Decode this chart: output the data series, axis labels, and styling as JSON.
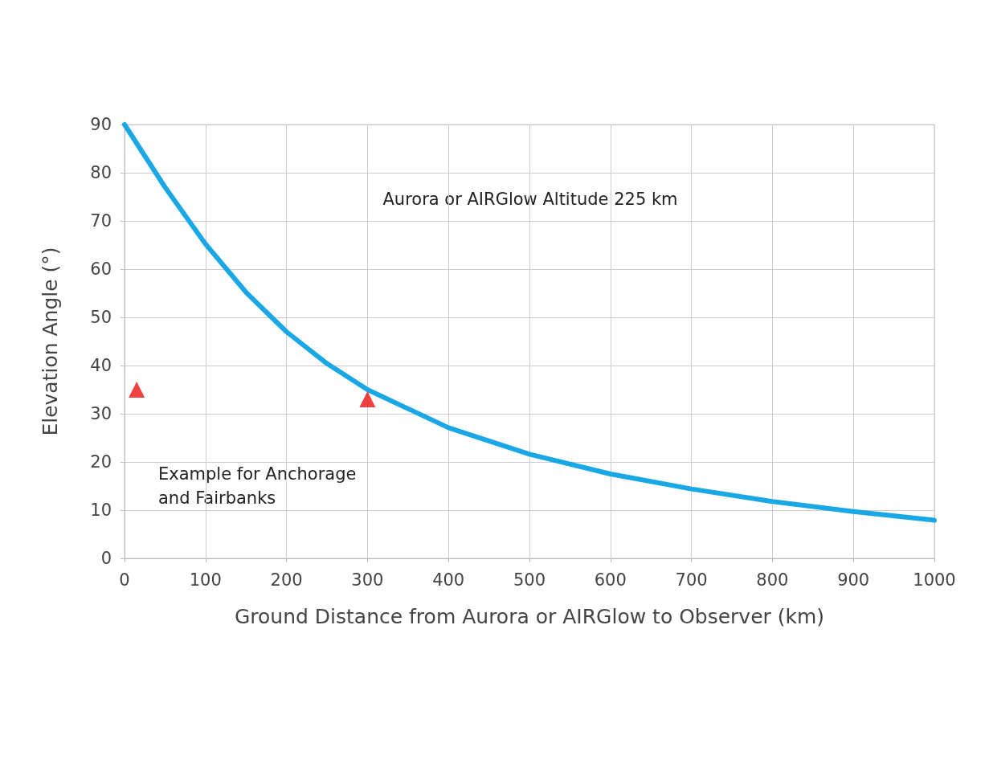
{
  "chart_data": {
    "type": "line",
    "xlabel": "Ground Distance from Aurora or AIRGlow to Observer (km)",
    "ylabel": "Elevation Angle (°)",
    "annotations": [
      "Aurora or AIRGlow Altitude 225 km",
      "Example for Anchorage and Fairbanks"
    ],
    "xlim": [
      0,
      1000
    ],
    "ylim": [
      0,
      90
    ],
    "xticks": [
      0,
      100,
      200,
      300,
      400,
      500,
      600,
      700,
      800,
      900,
      1000
    ],
    "yticks": [
      0,
      10,
      20,
      30,
      40,
      50,
      60,
      70,
      80,
      90
    ],
    "grid": true,
    "series": [
      {
        "color": "#1aa7e6",
        "marker": "none",
        "line_style": "solid",
        "x": [
          0,
          50,
          100,
          150,
          200,
          250,
          300,
          400,
          500,
          600,
          700,
          800,
          900,
          1000
        ],
        "values": [
          90,
          77,
          65.2,
          55.2,
          47,
          40.4,
          35,
          27.1,
          21.6,
          17.5,
          14.4,
          11.8,
          9.7,
          7.9
        ]
      },
      {
        "type": "scatter",
        "color": "#ee1111",
        "marker": "triangle",
        "x": [
          15,
          300
        ],
        "values": [
          35,
          33
        ]
      }
    ]
  }
}
